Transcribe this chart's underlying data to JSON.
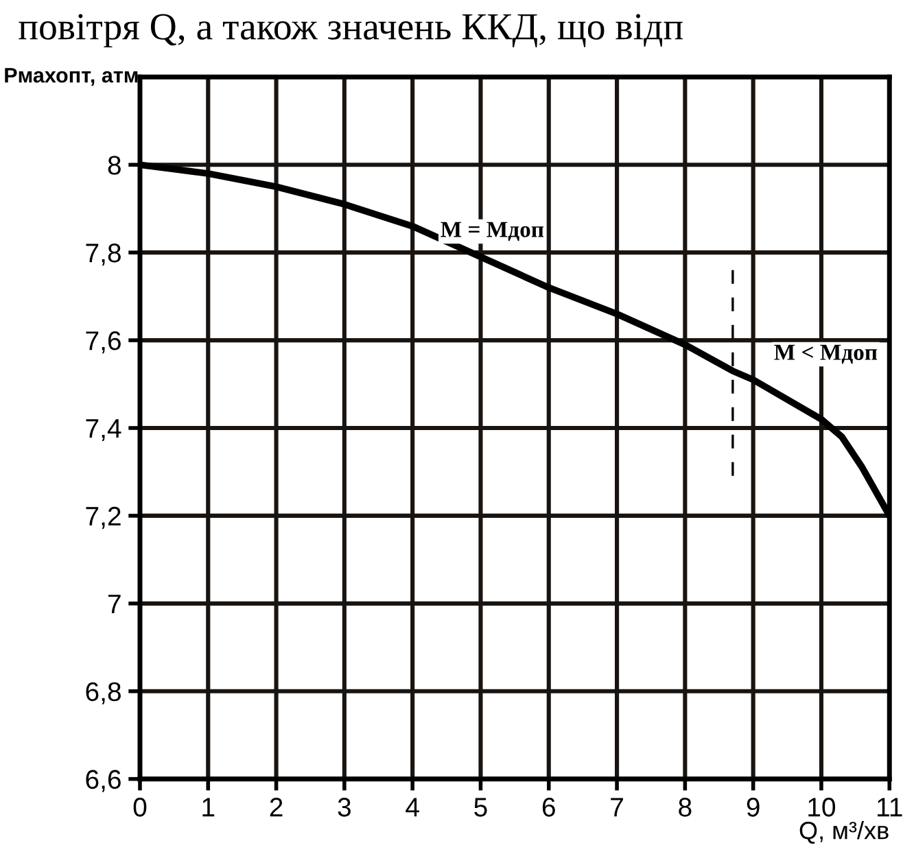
{
  "chart_data": {
    "type": "line",
    "xlabel": "Q, м³/хв",
    "ylabel": "Рмахопт, атм",
    "xlim": [
      0,
      11
    ],
    "ylim": [
      6.6,
      8.2
    ],
    "xticks": [
      0,
      1,
      2,
      3,
      4,
      5,
      6,
      7,
      8,
      9,
      10,
      11
    ],
    "yticks": [
      {
        "value": 6.6,
        "label": "6,6"
      },
      {
        "value": 6.8,
        "label": "6,8"
      },
      {
        "value": 7,
        "label": "7"
      },
      {
        "value": 7.2,
        "label": "7,2"
      },
      {
        "value": 7.4,
        "label": "7,4"
      },
      {
        "value": 7.6,
        "label": "7,6"
      },
      {
        "value": 7.8,
        "label": "7,8"
      },
      {
        "value": 8,
        "label": "8"
      }
    ],
    "grid": true,
    "legend": false,
    "marker": "none",
    "series": [
      {
        "color": "#000000",
        "line_style": "solid",
        "x": [
          0,
          1,
          2,
          3,
          4,
          5,
          6,
          7,
          8,
          8.7,
          9,
          10,
          10.3,
          10.6,
          11
        ],
        "values": [
          8,
          7.98,
          7.95,
          7.91,
          7.86,
          7.79,
          7.72,
          7.66,
          7.59,
          7.53,
          7.51,
          7.42,
          7.38,
          7.31,
          7.2
        ]
      },
      {
        "color": "#000000",
        "line_style": "dashed",
        "x": [
          8.7,
          8.7
        ],
        "values": [
          7.76,
          7.28
        ]
      }
    ],
    "annotations": [
      "M = Mдоп",
      "M < Mдоп",
      "повітря Q, а також значень ККД, що відп"
    ]
  }
}
